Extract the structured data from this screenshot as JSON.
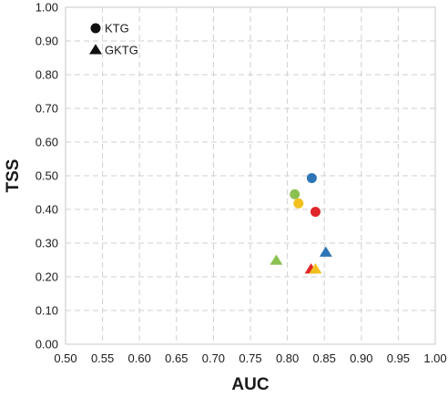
{
  "chart_data": {
    "type": "scatter",
    "xlabel": "AUC",
    "ylabel": "TSS",
    "xlim": [
      0.5,
      1.0
    ],
    "ylim": [
      0.0,
      1.0
    ],
    "x_ticks": [
      "0.50",
      "0.55",
      "0.60",
      "0.65",
      "0.70",
      "0.75",
      "0.80",
      "0.85",
      "0.90",
      "0.95",
      "1.00"
    ],
    "y_ticks": [
      "0.00",
      "0.10",
      "0.20",
      "0.30",
      "0.40",
      "0.50",
      "0.60",
      "0.70",
      "0.80",
      "0.90",
      "1.00"
    ],
    "grid": true,
    "legend_position": "top-left",
    "series": [
      {
        "name": "KTG",
        "marker": "circle",
        "points": [
          {
            "x": 0.833,
            "y": 0.493,
            "color": "#2e75b6"
          },
          {
            "x": 0.81,
            "y": 0.445,
            "color": "#8cc152"
          },
          {
            "x": 0.815,
            "y": 0.418,
            "color": "#f2c01e"
          },
          {
            "x": 0.838,
            "y": 0.393,
            "color": "#e0262b"
          }
        ]
      },
      {
        "name": "GKTG",
        "marker": "triangle",
        "points": [
          {
            "x": 0.852,
            "y": 0.272,
            "color": "#2e75b6"
          },
          {
            "x": 0.785,
            "y": 0.248,
            "color": "#8cc152"
          },
          {
            "x": 0.832,
            "y": 0.222,
            "color": "#e0262b"
          },
          {
            "x": 0.838,
            "y": 0.222,
            "color": "#f2c01e"
          }
        ]
      }
    ]
  }
}
